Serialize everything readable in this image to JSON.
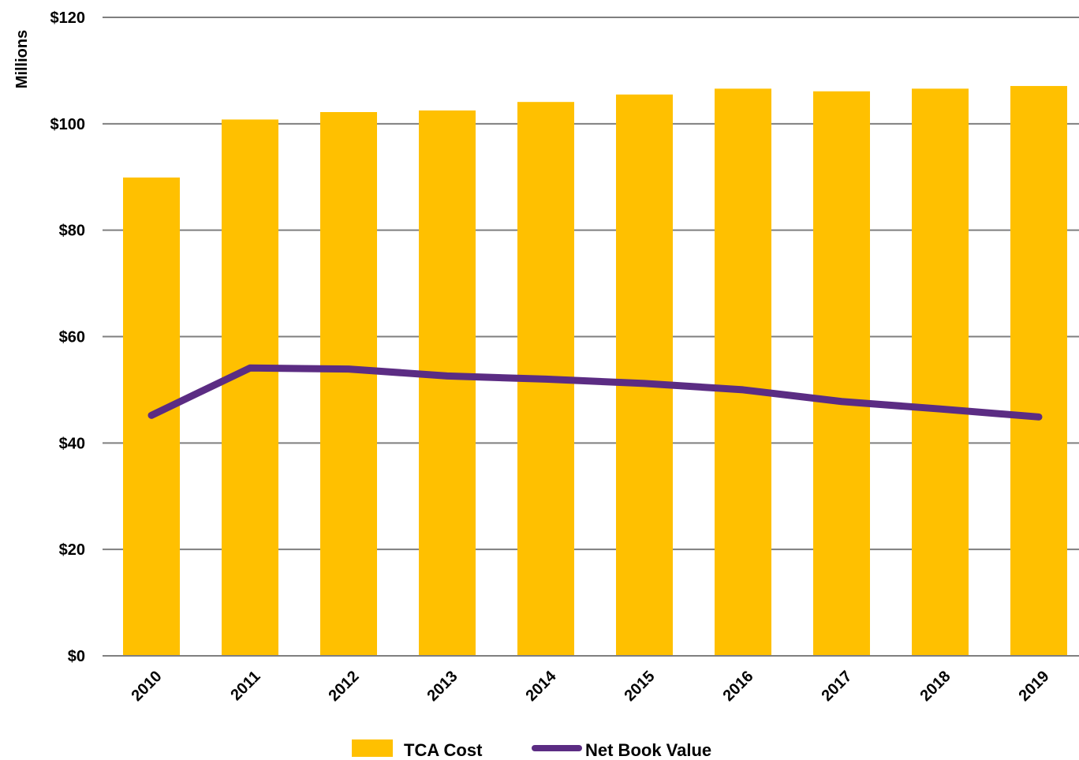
{
  "chart_data": {
    "type": "bar",
    "categories": [
      "2010",
      "2011",
      "2012",
      "2013",
      "2014",
      "2015",
      "2016",
      "2017",
      "2018",
      "2019"
    ],
    "series": [
      {
        "name": "TCA Cost",
        "type": "bar",
        "color": "#FFC000",
        "values": [
          89.9,
          100.8,
          102.2,
          102.5,
          104.1,
          105.5,
          106.6,
          106.1,
          106.6,
          107.1
        ]
      },
      {
        "name": "Net Book Value",
        "type": "line",
        "color": "#5B2C83",
        "values": [
          45.2,
          54.1,
          53.9,
          52.6,
          52.0,
          51.2,
          50.0,
          47.8,
          46.4,
          44.9
        ]
      }
    ],
    "ylabel": "Millions",
    "ylim": [
      0,
      120
    ],
    "yticks": [
      0,
      20,
      40,
      60,
      80,
      100,
      120
    ],
    "ytick_labels": [
      "$0",
      "$20",
      "$40",
      "$60",
      "$80",
      "$100",
      "$120"
    ],
    "grid": true,
    "legend_position": "bottom",
    "gridline_color": "#7F7F7F"
  }
}
